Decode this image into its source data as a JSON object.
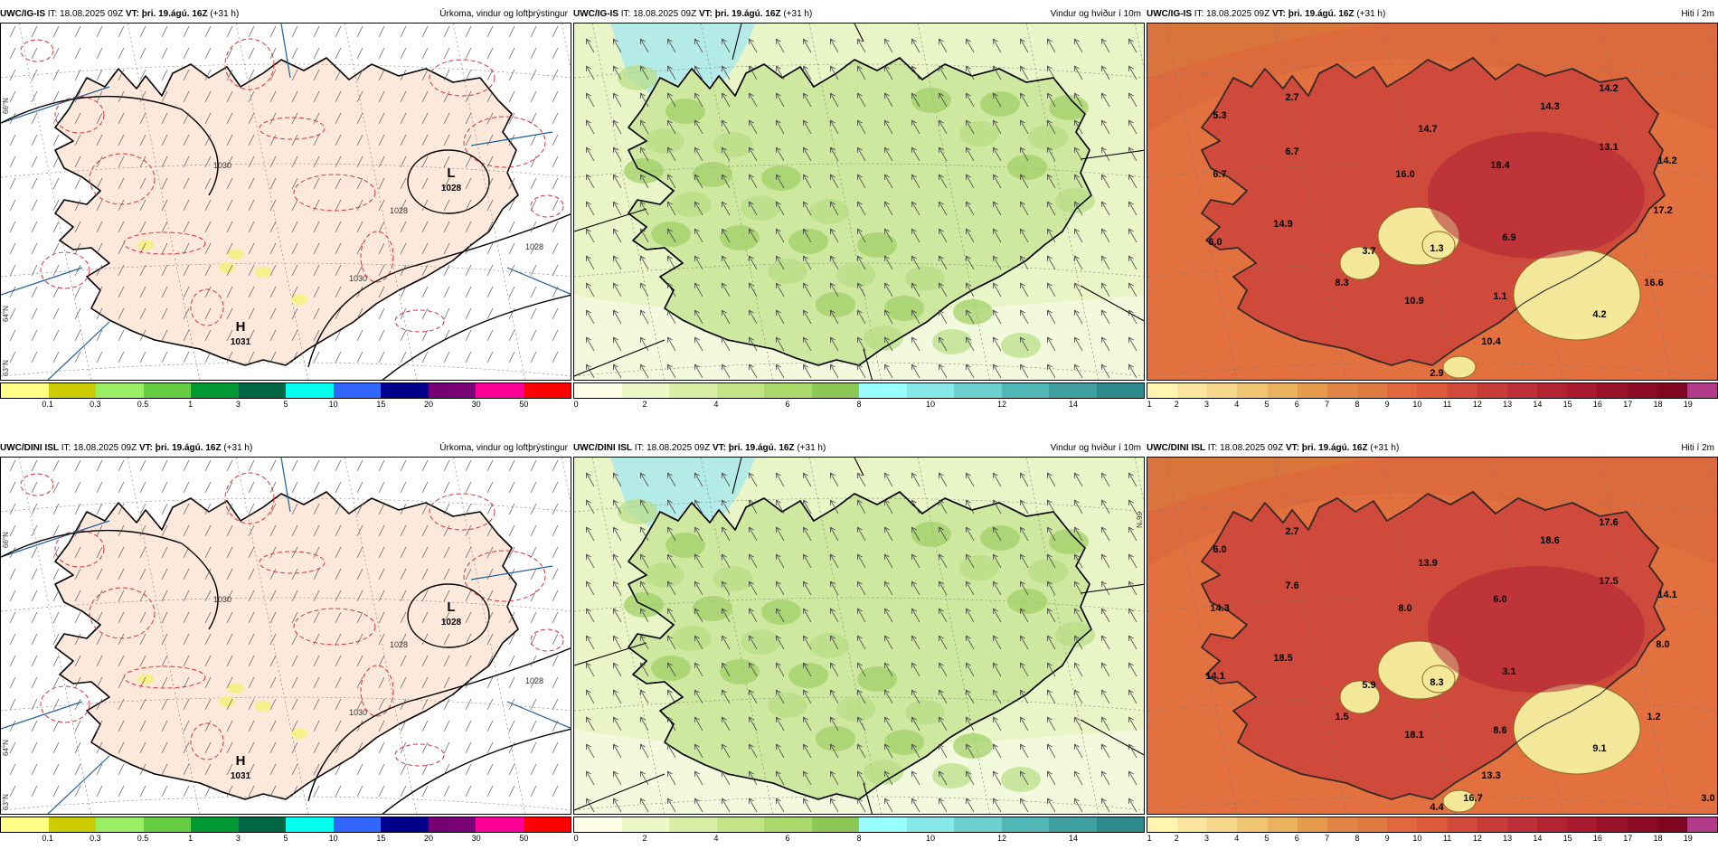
{
  "panels": [
    {
      "id": "p1",
      "model": "UWC/IG-IS",
      "it": "IT: 18.08.2025 09Z",
      "vt": "VT: þri. 19.ágú. 16Z",
      "lead": "(+31 h)",
      "variable": "Úrkoma, vindur og loftþrýstingur",
      "kind": "precip",
      "pressure": {
        "H": "H",
        "H_val": "1031",
        "L": "L",
        "L_val": "1028"
      },
      "isobar_labels": [
        "1030",
        "1028",
        "1030",
        "1028"
      ],
      "lat_labels": [
        "66°N",
        "64°N",
        "63°N"
      ]
    },
    {
      "id": "p2",
      "model": "UWC/IG-IS",
      "it": "IT: 18.08.2025 09Z",
      "vt": "VT: þri. 19.ágú. 16Z",
      "lead": "(+31 h)",
      "variable": "Vindur og hviður í 10m",
      "kind": "wind"
    },
    {
      "id": "p3",
      "model": "UWC/IG-IS",
      "it": "IT: 18.08.2025 09Z",
      "vt": "VT: þri. 19.ágú. 16Z",
      "lead": "(+31 h)",
      "variable": "Hiti í 2m",
      "kind": "temp",
      "temps": [
        "2.7",
        "5.3",
        "6.7",
        "6.7",
        "14.7",
        "16.0",
        "18.4",
        "14.3",
        "14.2",
        "13.1",
        "14.2",
        "17.2",
        "14.9",
        "6.0",
        "3.7",
        "1.3",
        "6.9",
        "8.3",
        "1.1",
        "10.9",
        "16.6",
        "4.2",
        "10.4",
        "2.9"
      ]
    },
    {
      "id": "p4",
      "model": "UWC/DINI ISL",
      "it": "IT: 18.08.2025 09Z",
      "vt": "VT: þri. 19.ágú. 16Z",
      "lead": "(+31 h)",
      "variable": "Úrkoma, vindur og loftþrýstingur",
      "kind": "precip",
      "pressure": {
        "H": "H",
        "H_val": "1031",
        "L": "L",
        "L_val": "1028"
      },
      "isobar_labels": [
        "1030",
        "1028",
        "1030",
        "1028"
      ],
      "lat_labels": [
        "66°N",
        "64°N",
        "63°N"
      ]
    },
    {
      "id": "p5",
      "model": "UWC/DINI ISL",
      "it": "IT: 18.08.2025 09Z",
      "vt": "VT: þri. 19.ágú. 16Z",
      "lead": "(+31 h)",
      "variable": "Vindur og hviður í 10m",
      "kind": "wind",
      "lat_labels": [
        "66°N"
      ]
    },
    {
      "id": "p6",
      "model": "UWC/DINI ISL",
      "it": "IT: 18.08.2025 09Z",
      "vt": "VT: þri. 19.ágú. 16Z",
      "lead": "(+31 h)",
      "variable": "Hiti í 2m",
      "kind": "temp",
      "temps": [
        "2.7",
        "6.0",
        "7.6",
        "14.3",
        "13.9",
        "8.0",
        "6.0",
        "18.6",
        "17.6",
        "17.5",
        "14.1",
        "8.0",
        "18.5",
        "14.1",
        "5.9",
        "8.3",
        "3.1",
        "1.5",
        "8.6",
        "18.1",
        "1.2",
        "9.1",
        "13.3",
        "4.4",
        "16.7",
        "3.0"
      ]
    }
  ],
  "scales": {
    "precip": {
      "colors": [
        "#ffff88",
        "#cccc00",
        "#99ee66",
        "#66cc44",
        "#009933",
        "#006644",
        "#00ffee",
        "#3366ff",
        "#000088",
        "#770077",
        "#ff0099",
        "#ff0000"
      ],
      "ticks": [
        "0.1",
        "0.3",
        "0.5",
        "1",
        "3",
        "5",
        "10",
        "15",
        "20",
        "30",
        "50"
      ]
    },
    "wind": {
      "colors": [
        "#fbfde6",
        "#eef7c8",
        "#d9efa6",
        "#c3e587",
        "#a9d86b",
        "#8dc757",
        "#99ffff",
        "#88e8e8",
        "#6fd0d0",
        "#55b8b8",
        "#40a0a0",
        "#2d8a8a"
      ],
      "ticks": [
        "0",
        "2",
        "4",
        "6",
        "8",
        "10",
        "12",
        "14"
      ]
    },
    "temp": {
      "colors": [
        "#fff4b0",
        "#fbe6a0",
        "#f6d68a",
        "#f0c674",
        "#eab160",
        "#e59a50",
        "#df8444",
        "#dd7a40",
        "#e0673e",
        "#dc5a3c",
        "#d24a3a",
        "#c83c38",
        "#bd2f36",
        "#b22432",
        "#a81a2e",
        "#9a122a",
        "#8c0c26",
        "#800622",
        "#b23a8a"
      ],
      "ticks": [
        "1",
        "2",
        "3",
        "4",
        "5",
        "6",
        "7",
        "8",
        "9",
        "10",
        "11",
        "12",
        "13",
        "14",
        "15",
        "16",
        "17",
        "18",
        "19"
      ]
    }
  },
  "colors": {
    "land_precip": "#fde9dc",
    "ocean_wind": "#e9f5c6",
    "temp_bg": "#e3703f",
    "isobar": "#000000",
    "red_contour": "#d9303a",
    "meridian": "#1f5f9f"
  }
}
